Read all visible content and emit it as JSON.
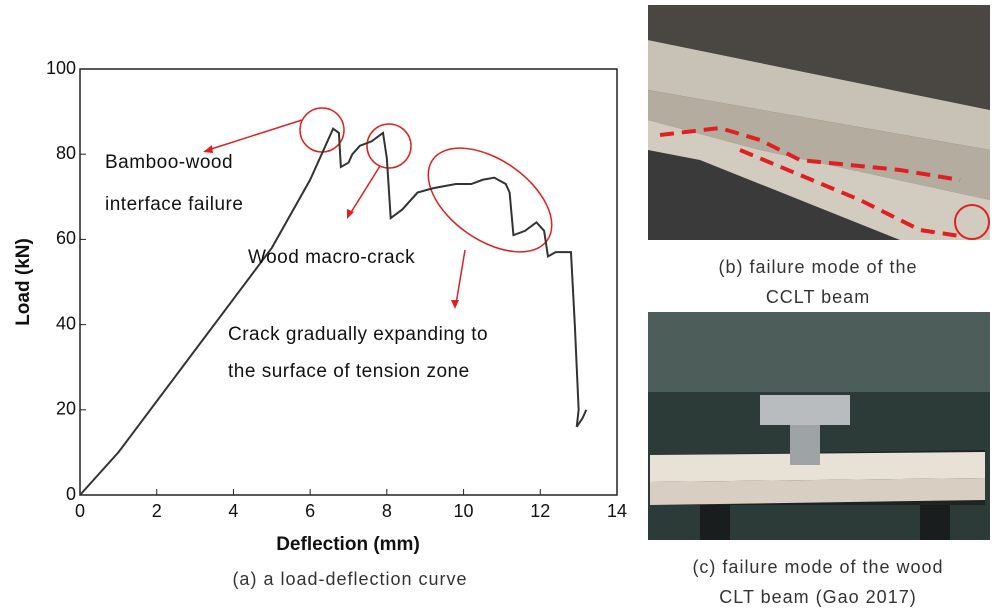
{
  "chart_data": {
    "type": "line",
    "xlabel": "Deflection (mm)",
    "ylabel": "Load (kN)",
    "x": [
      0,
      1,
      2,
      3,
      4,
      5,
      6,
      6.4,
      6.6,
      6.75,
      6.8,
      7.0,
      7.1,
      7.3,
      7.6,
      7.9,
      8.0,
      8.1,
      8.4,
      8.8,
      9.2,
      9.8,
      10.2,
      10.5,
      10.8,
      11.1,
      11.2,
      11.3,
      11.6,
      11.9,
      12.1,
      12.2,
      12.4,
      12.8,
      12.9,
      13.0,
      12.95,
      13.1,
      13.2
    ],
    "series": [
      {
        "color": "#333333",
        "values": [
          0,
          10,
          22,
          34,
          46,
          58,
          74,
          82,
          86,
          85,
          77,
          78,
          80,
          82,
          83,
          85,
          79,
          65,
          67,
          71,
          72,
          73,
          73,
          74,
          74.5,
          73,
          71,
          61,
          62,
          64,
          62,
          56,
          57,
          57,
          40,
          20,
          16,
          18,
          20
        ]
      }
    ],
    "xlim": [
      0,
      14
    ],
    "ylim": [
      0,
      100
    ],
    "xticks": [
      0,
      2,
      4,
      6,
      8,
      10,
      12,
      14
    ],
    "yticks": [
      0,
      20,
      40,
      60,
      80,
      100
    ],
    "annotations": [
      [
        "Bamboo-wood",
        "interface failure"
      ],
      [
        "Wood macro-crack"
      ],
      [
        "Crack gradually expanding to",
        "the surface of tension zone"
      ]
    ]
  },
  "captions": {
    "a": [
      "(a) a load-deflection curve"
    ],
    "b": [
      "(b) failure mode of the",
      "CCLT beam"
    ],
    "c": [
      "(c) failure mode of the wood",
      "CLT beam (Gao 2017)"
    ]
  }
}
